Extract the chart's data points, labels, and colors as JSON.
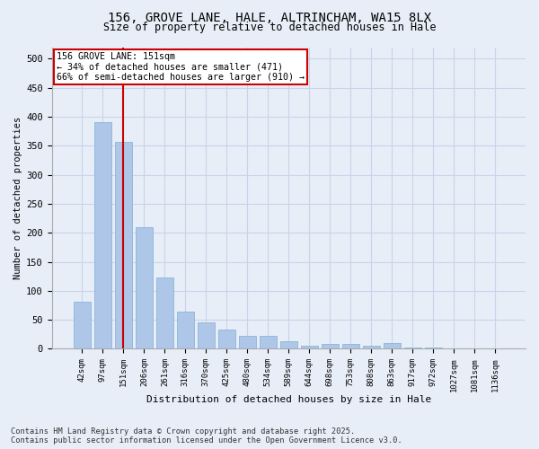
{
  "title_line1": "156, GROVE LANE, HALE, ALTRINCHAM, WA15 8LX",
  "title_line2": "Size of property relative to detached houses in Hale",
  "xlabel": "Distribution of detached houses by size in Hale",
  "ylabel": "Number of detached properties",
  "categories": [
    "42sqm",
    "97sqm",
    "151sqm",
    "206sqm",
    "261sqm",
    "316sqm",
    "370sqm",
    "425sqm",
    "480sqm",
    "534sqm",
    "589sqm",
    "644sqm",
    "698sqm",
    "753sqm",
    "808sqm",
    "863sqm",
    "917sqm",
    "972sqm",
    "1027sqm",
    "1081sqm",
    "1136sqm"
  ],
  "values": [
    82,
    390,
    357,
    209,
    123,
    64,
    46,
    33,
    22,
    23,
    13,
    6,
    8,
    8,
    5,
    10,
    3,
    2,
    1,
    1,
    1
  ],
  "bar_color": "#aec6e8",
  "bar_edge_color": "#7fafd4",
  "vline_x_idx": 2,
  "vline_color": "#cc0000",
  "annotation_text": "156 GROVE LANE: 151sqm\n← 34% of detached houses are smaller (471)\n66% of semi-detached houses are larger (910) →",
  "annotation_box_color": "#ffffff",
  "annotation_box_edge": "#cc0000",
  "ylim": [
    0,
    520
  ],
  "yticks": [
    0,
    50,
    100,
    150,
    200,
    250,
    300,
    350,
    400,
    450,
    500
  ],
  "grid_color": "#c8d4e8",
  "bg_color": "#e8eef8",
  "footer_line1": "Contains HM Land Registry data © Crown copyright and database right 2025.",
  "footer_line2": "Contains public sector information licensed under the Open Government Licence v3.0."
}
